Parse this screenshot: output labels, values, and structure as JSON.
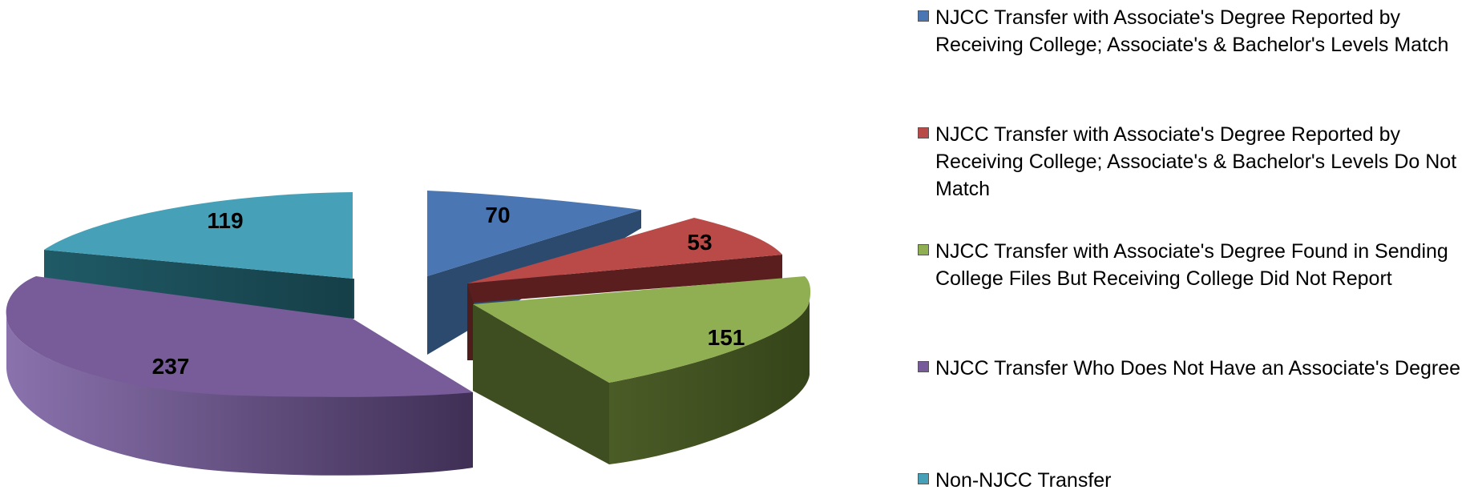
{
  "chart_data": {
    "type": "pie",
    "style": "3d-exploded",
    "series": [
      {
        "label": "NJCC Transfer with Associate's Degree Reported by Receiving College; Associate's & Bachelor's Levels Match",
        "value": 70,
        "color": "#4A77B4"
      },
      {
        "label": "NJCC Transfer with Associate's Degree Reported by Receiving College; Associate's & Bachelor's Levels Do Not Match",
        "value": 53,
        "color": "#B94A48"
      },
      {
        "label": "NJCC Transfer with Associate's Degree Found in Sending College Files But Receiving College Did Not Report",
        "value": 151,
        "color": "#8FAF52"
      },
      {
        "label": "NJCC Transfer Who Does Not Have an Associate's Degree",
        "value": 237,
        "color": "#775C99"
      },
      {
        "label": "Non-NJCC Transfer",
        "value": 119,
        "color": "#46A1B8"
      }
    ],
    "legend_position": "right"
  }
}
